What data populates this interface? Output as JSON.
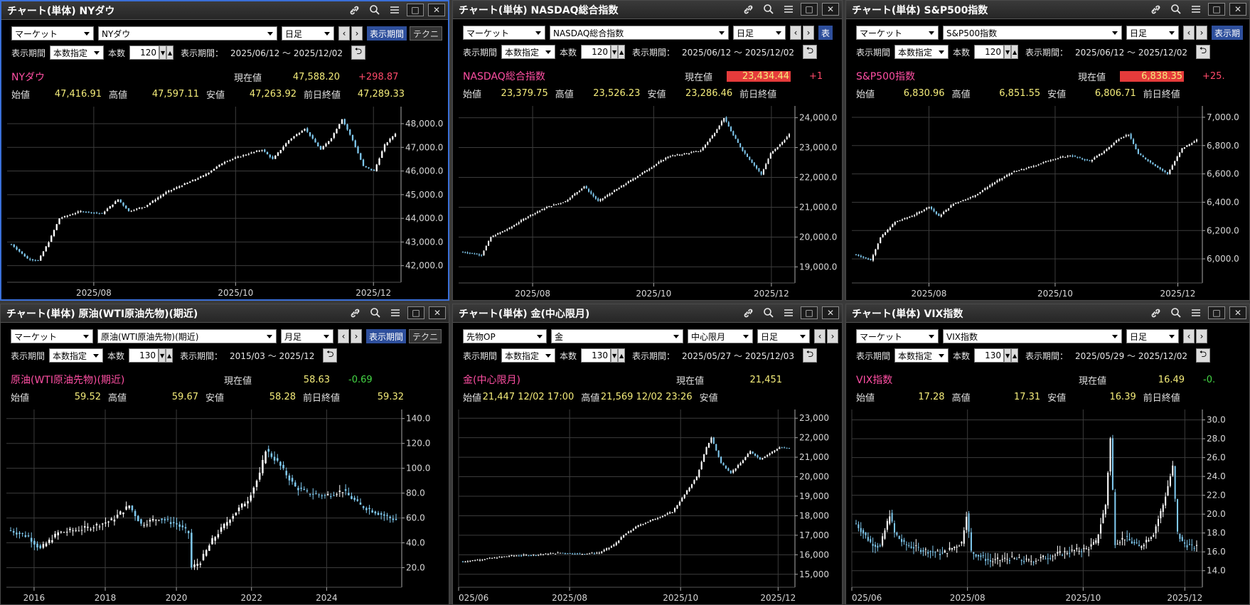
{
  "panels": [
    {
      "title": "チャート(単体) NYダウ",
      "market": "マーケット",
      "symbol": "NYダウ",
      "period": "日足",
      "show_btn": "表示期間",
      "tech_btn": "テクニ",
      "range_mode_label": "表示期間",
      "range_mode": "本数指定",
      "count_label": "本数",
      "count": "120",
      "range_label": "表示期間：",
      "range": "2025/06/12 ～ 2025/12/02",
      "name": "NYダウ",
      "current_label": "現在値",
      "current": "47,588.20",
      "change": "+298.87",
      "quotes": [
        {
          "label": "始値",
          "value": "47,416.91"
        },
        {
          "label": "高値",
          "value": "47,597.11"
        },
        {
          "label": "安値",
          "value": "47,263.92"
        },
        {
          "label": "前日終値",
          "value": "47,289.33"
        }
      ],
      "chart_data": {
        "type": "candlestick",
        "y_ticks": [
          "48,000.0",
          "47,000.0",
          "46,000.0",
          "45,000.0",
          "44,000.0",
          "43,000.0",
          "42,000.0"
        ],
        "ylim": [
          41600,
          48600
        ],
        "x_ticks": [
          "2025/08",
          "2025/10",
          "2025/12"
        ],
        "anchors": [
          [
            0,
            42900
          ],
          [
            6,
            42300
          ],
          [
            10,
            42200
          ],
          [
            14,
            43000
          ],
          [
            18,
            44000
          ],
          [
            26,
            44300
          ],
          [
            34,
            44200
          ],
          [
            40,
            44800
          ],
          [
            44,
            44300
          ],
          [
            50,
            44500
          ],
          [
            58,
            45100
          ],
          [
            64,
            45400
          ],
          [
            72,
            45800
          ],
          [
            80,
            46400
          ],
          [
            88,
            46700
          ],
          [
            94,
            46900
          ],
          [
            98,
            46500
          ],
          [
            104,
            47300
          ],
          [
            110,
            47800
          ],
          [
            116,
            46900
          ],
          [
            120,
            47400
          ],
          [
            124,
            48200
          ],
          [
            128,
            47300
          ],
          [
            132,
            46200
          ],
          [
            136,
            46000
          ],
          [
            140,
            47100
          ],
          [
            144,
            47588
          ]
        ]
      }
    },
    {
      "title": "チャート(単体) NASDAQ総合指数",
      "market": "マーケット",
      "symbol": "NASDAQ総合指数",
      "period": "日足",
      "show_btn": "表",
      "range_mode_label": "表示期間",
      "range_mode": "本数指定",
      "count_label": "本数",
      "count": "120",
      "range_label": "表示期間：",
      "range": "2025/06/12 ～ 2025/12/02",
      "name": "NASDAQ総合指数",
      "current_label": "現在値",
      "current": "23,434.44",
      "change": "+1",
      "quotes": [
        {
          "label": "始値",
          "value": "23,379.75"
        },
        {
          "label": "高値",
          "value": "23,526.23"
        },
        {
          "label": "安値",
          "value": "23,286.46"
        },
        {
          "label": "前日終値",
          "value": ""
        }
      ],
      "chart_data": {
        "type": "candlestick",
        "y_ticks": [
          "24,000.0",
          "23,000.0",
          "22,000.0",
          "21,000.0",
          "20,000.0",
          "19,000.0"
        ],
        "ylim": [
          18700,
          24300
        ],
        "x_ticks": [
          "2025/08",
          "2025/10",
          "2025/12"
        ],
        "anchors": [
          [
            0,
            19500
          ],
          [
            8,
            19400
          ],
          [
            12,
            20000
          ],
          [
            20,
            20300
          ],
          [
            28,
            20700
          ],
          [
            36,
            21000
          ],
          [
            44,
            21200
          ],
          [
            52,
            21700
          ],
          [
            58,
            21200
          ],
          [
            64,
            21500
          ],
          [
            72,
            21900
          ],
          [
            80,
            22300
          ],
          [
            88,
            22700
          ],
          [
            96,
            22800
          ],
          [
            102,
            22900
          ],
          [
            108,
            23500
          ],
          [
            112,
            24000
          ],
          [
            116,
            23400
          ],
          [
            120,
            22900
          ],
          [
            124,
            22500
          ],
          [
            128,
            22100
          ],
          [
            132,
            22800
          ],
          [
            136,
            23100
          ],
          [
            140,
            23434
          ]
        ]
      }
    },
    {
      "title": "チャート(単体) S&P500指数",
      "market": "マーケット",
      "symbol": "S&P500指数",
      "period": "日足",
      "show_btn": "表示期",
      "range_mode_label": "表示期間",
      "range_mode": "本数指定",
      "count_label": "本数",
      "count": "120",
      "range_label": "表示期間：",
      "range": "2025/06/12 ～ 2025/12/02",
      "name": "S&P500指数",
      "current_label": "現在値",
      "current": "6,838.35",
      "change": "+25.",
      "quotes": [
        {
          "label": "始値",
          "value": "6,830.96"
        },
        {
          "label": "高値",
          "value": "6,851.55"
        },
        {
          "label": "安値",
          "value": "6,806.71"
        },
        {
          "label": "前日終値",
          "value": ""
        }
      ],
      "chart_data": {
        "type": "candlestick",
        "y_ticks": [
          "7,000.0",
          "6,800.0",
          "6,600.0",
          "6,400.0",
          "6,200.0",
          "6,000.0"
        ],
        "ylim": [
          5880,
          7060
        ],
        "x_ticks": [
          "2025/08",
          "2025/10",
          "2025/12"
        ],
        "anchors": [
          [
            0,
            6030
          ],
          [
            6,
            5990
          ],
          [
            10,
            6150
          ],
          [
            16,
            6260
          ],
          [
            24,
            6310
          ],
          [
            30,
            6370
          ],
          [
            34,
            6300
          ],
          [
            40,
            6390
          ],
          [
            48,
            6440
          ],
          [
            56,
            6530
          ],
          [
            64,
            6610
          ],
          [
            72,
            6650
          ],
          [
            80,
            6700
          ],
          [
            88,
            6730
          ],
          [
            96,
            6690
          ],
          [
            102,
            6760
          ],
          [
            108,
            6850
          ],
          [
            112,
            6880
          ],
          [
            116,
            6740
          ],
          [
            122,
            6670
          ],
          [
            128,
            6600
          ],
          [
            134,
            6780
          ],
          [
            140,
            6838
          ]
        ]
      }
    },
    {
      "title": "チャート(単体) 原油(WTI原油先物)(期近)",
      "market": "マーケット",
      "symbol": "原油(WTI原油先物)(期近)",
      "period": "月足",
      "show_btn": "表示期間",
      "tech_btn": "テクニ",
      "range_mode_label": "表示期間",
      "range_mode": "本数指定",
      "count_label": "本数",
      "count": "130",
      "range_label": "表示期間：",
      "range": "2015/03 ～ 2025/12",
      "name": "原油(WTI原油先物)(期近)",
      "current_label": "現在値",
      "current": "58.63",
      "change": "-0.69",
      "quotes": [
        {
          "label": "始値",
          "value": "59.52"
        },
        {
          "label": "高値",
          "value": "59.67"
        },
        {
          "label": "安値",
          "value": "58.28"
        },
        {
          "label": "前日終値",
          "value": "59.32"
        }
      ],
      "chart_data": {
        "type": "candlestick",
        "y_ticks": [
          "140.0",
          "120.0",
          "100.0",
          "80.0",
          "60.0",
          "40.0",
          "20.0"
        ],
        "ylim": [
          10,
          145
        ],
        "x_ticks": [
          "2016",
          "2018",
          "2020",
          "2022",
          "2024"
        ],
        "anchors": [
          [
            0,
            50
          ],
          [
            6,
            45
          ],
          [
            10,
            35
          ],
          [
            16,
            48
          ],
          [
            26,
            52
          ],
          [
            34,
            58
          ],
          [
            40,
            70
          ],
          [
            44,
            55
          ],
          [
            50,
            60
          ],
          [
            56,
            55
          ],
          [
            60,
            48
          ],
          [
            61,
            20
          ],
          [
            64,
            25
          ],
          [
            68,
            42
          ],
          [
            74,
            60
          ],
          [
            80,
            75
          ],
          [
            84,
            95
          ],
          [
            86,
            115
          ],
          [
            90,
            105
          ],
          [
            96,
            85
          ],
          [
            100,
            80
          ],
          [
            106,
            78
          ],
          [
            112,
            82
          ],
          [
            118,
            70
          ],
          [
            124,
            64
          ],
          [
            128,
            60
          ],
          [
            130,
            58.63
          ]
        ]
      }
    },
    {
      "title": "チャート(単体) 金(中心限月)",
      "market": "先物OP",
      "symbol": "金",
      "contract": "中心限月",
      "period": "日足",
      "range_mode_label": "表示期間",
      "range_mode": "本数指定",
      "count_label": "本数",
      "count": "130",
      "range_label": "表示期間：",
      "range": "2025/05/27 ～ 2025/12/03",
      "name": "金(中心限月)",
      "current_label": "現在値",
      "current": "21,451",
      "change": "",
      "quotes": [
        {
          "label": "始値",
          "value": "21,447  12/02  17:00"
        },
        {
          "label": "高値",
          "value": "21,569  12/02  23:26"
        },
        {
          "label": "安値",
          "value": ""
        },
        {
          "label": "",
          "value": ""
        }
      ],
      "chart_data": {
        "type": "candlestick",
        "y_ticks": [
          "23,000",
          "22,000",
          "21,000",
          "20,000",
          "19,000",
          "18,000",
          "17,000",
          "16,000",
          "15,000"
        ],
        "ylim": [
          14700,
          23300
        ],
        "x_ticks": [
          "025/06",
          "2025/08",
          "2025/10",
          "2025/12"
        ],
        "anchors": [
          [
            0,
            15650
          ],
          [
            10,
            15800
          ],
          [
            20,
            15950
          ],
          [
            30,
            16000
          ],
          [
            40,
            16100
          ],
          [
            48,
            16050
          ],
          [
            56,
            16100
          ],
          [
            62,
            16500
          ],
          [
            66,
            17000
          ],
          [
            72,
            17500
          ],
          [
            80,
            17900
          ],
          [
            86,
            18200
          ],
          [
            90,
            18900
          ],
          [
            96,
            20000
          ],
          [
            100,
            21500
          ],
          [
            102,
            22000
          ],
          [
            106,
            20700
          ],
          [
            110,
            20200
          ],
          [
            114,
            20700
          ],
          [
            118,
            21300
          ],
          [
            122,
            20900
          ],
          [
            126,
            21200
          ],
          [
            130,
            21500
          ],
          [
            134,
            21451
          ]
        ]
      }
    },
    {
      "title": "チャート(単体) VIX指数",
      "market": "マーケット",
      "symbol": "VIX指数",
      "period": "日足",
      "range_mode_label": "表示期間",
      "range_mode": "本数指定",
      "count_label": "本数",
      "count": "130",
      "range_label": "表示期間：",
      "range": "2025/05/29 ～ 2025/12/02",
      "name": "VIX指数",
      "current_label": "現在値",
      "current": "16.49",
      "change": "-0.",
      "quotes": [
        {
          "label": "始値",
          "value": "17.28"
        },
        {
          "label": "高値",
          "value": "17.31"
        },
        {
          "label": "安値",
          "value": "16.39"
        },
        {
          "label": "前日終値",
          "value": ""
        }
      ],
      "chart_data": {
        "type": "candlestick",
        "y_ticks": [
          "30.0",
          "28.0",
          "26.0",
          "24.0",
          "22.0",
          "20.0",
          "18.0",
          "16.0",
          "14.0"
        ],
        "ylim": [
          13,
          30.8
        ],
        "x_ticks": [
          "025/06",
          "2025/08",
          "2025/10",
          "2025/12"
        ],
        "anchors": [
          [
            0,
            19
          ],
          [
            6,
            17
          ],
          [
            10,
            16.5
          ],
          [
            14,
            20
          ],
          [
            16,
            18
          ],
          [
            20,
            16.8
          ],
          [
            28,
            16.2
          ],
          [
            36,
            15.8
          ],
          [
            44,
            17
          ],
          [
            46,
            20
          ],
          [
            48,
            16
          ],
          [
            56,
            15
          ],
          [
            64,
            15.3
          ],
          [
            72,
            15
          ],
          [
            80,
            15.5
          ],
          [
            88,
            16
          ],
          [
            96,
            16.3
          ],
          [
            100,
            17
          ],
          [
            104,
            21
          ],
          [
            106,
            28
          ],
          [
            108,
            17
          ],
          [
            112,
            17.5
          ],
          [
            118,
            16.5
          ],
          [
            124,
            18
          ],
          [
            128,
            21
          ],
          [
            132,
            25
          ],
          [
            134,
            18
          ],
          [
            136,
            17
          ],
          [
            140,
            16.5
          ],
          [
            142,
            16.49
          ]
        ]
      }
    }
  ]
}
